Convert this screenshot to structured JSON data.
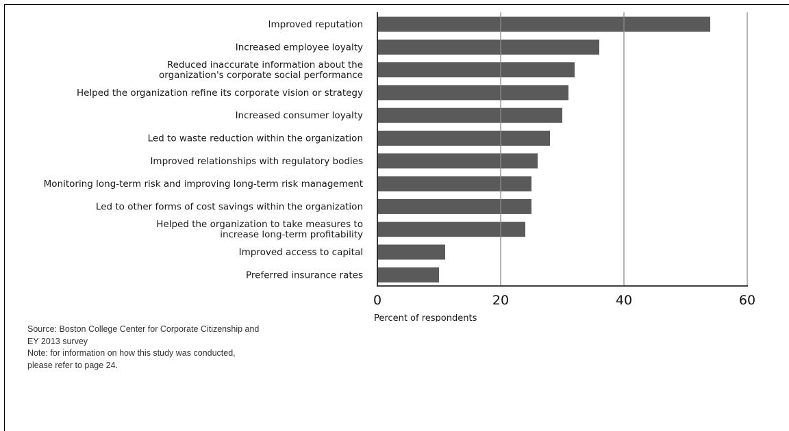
{
  "chart_data": {
    "type": "bar",
    "orientation": "horizontal",
    "title": "",
    "xlabel": "Percent of respondents",
    "ylabel": "",
    "xlim": [
      0,
      60
    ],
    "xticks": [
      0,
      20,
      40,
      60
    ],
    "grid": true,
    "bar_color": "#5a5a5a",
    "categories": [
      [
        "Improved reputation"
      ],
      [
        "Increased employee loyalty"
      ],
      [
        "Reduced inaccurate information about the",
        "organization's corporate social performance"
      ],
      [
        "Helped the organization refine its corporate vision or strategy"
      ],
      [
        "Increased consumer loyalty"
      ],
      [
        "Led to waste reduction within the organization"
      ],
      [
        "Improved relationships with regulatory bodies"
      ],
      [
        "Monitoring long-term risk and improving long-term risk management"
      ],
      [
        "Led to other forms of cost savings within the organization"
      ],
      [
        "Helped the organization to take measures to",
        "increase long-term profitability"
      ],
      [
        "Improved access to capital"
      ],
      [
        "Preferred insurance rates"
      ]
    ],
    "values": [
      54,
      36,
      32,
      31,
      30,
      28,
      26,
      25,
      25,
      24,
      11,
      10
    ]
  },
  "notes": {
    "source_line1": "Source: Boston College Center for Corporate Citizenship and",
    "source_line2": "EY 2013 survey",
    "note_line1": "Note: for information on how this study was conducted,",
    "note_line2": "please refer to page 24."
  }
}
